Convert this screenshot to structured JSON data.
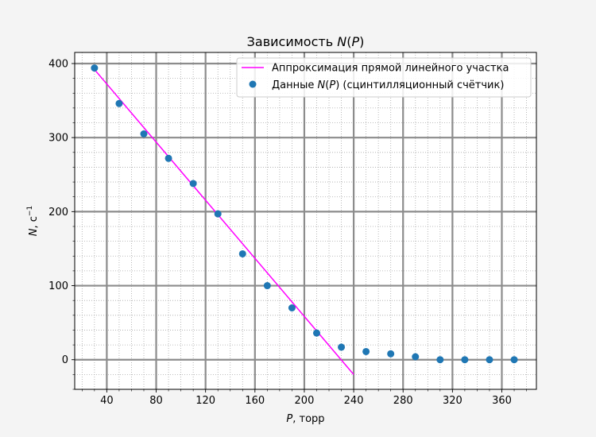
{
  "chart_data": {
    "type": "scatter",
    "title_prefix": "Зависимость ",
    "title_var": "N",
    "title_suffix": "(",
    "title_var2": "P",
    "title_end": ")",
    "xlabel_var": "P",
    "xlabel_rest": ", торр",
    "ylabel_var": "N",
    "ylabel_rest": ", с",
    "ylabel_exp": "−1",
    "xlim": [
      14,
      388
    ],
    "ylim": [
      -40,
      415
    ],
    "x_ticks": [
      40,
      80,
      120,
      160,
      200,
      240,
      280,
      320,
      360
    ],
    "x_tick_labels": [
      "40",
      "80",
      "120",
      "160",
      "200",
      "240",
      "280",
      "320",
      "360"
    ],
    "y_ticks": [
      0,
      100,
      200,
      300,
      400
    ],
    "y_tick_labels": [
      "0",
      "100",
      "200",
      "300",
      "400"
    ],
    "x_minor_step": 10,
    "y_minor_step": 20,
    "grid": true,
    "legend_position": "top-right",
    "series": [
      {
        "name": "Аппроксимация прямой линейного участка",
        "kind": "line",
        "color": "#ff00ff",
        "x": [
          30,
          240
        ],
        "y": [
          392,
          -20
        ]
      },
      {
        "name_prefix": "Данные ",
        "name_var": "N",
        "name_mid": "(",
        "name_var2": "P",
        "name_suffix": ") (сцинтилляционный счётчик)",
        "kind": "scatter",
        "color": "#1f77b4",
        "x": [
          30,
          50,
          70,
          90,
          110,
          130,
          150,
          170,
          190,
          210,
          230,
          250,
          270,
          290,
          310,
          330,
          350,
          370
        ],
        "y": [
          394,
          346,
          305,
          272,
          238,
          197,
          143,
          100,
          70,
          36,
          17,
          11,
          8,
          4,
          0,
          0,
          0,
          0
        ]
      }
    ]
  }
}
